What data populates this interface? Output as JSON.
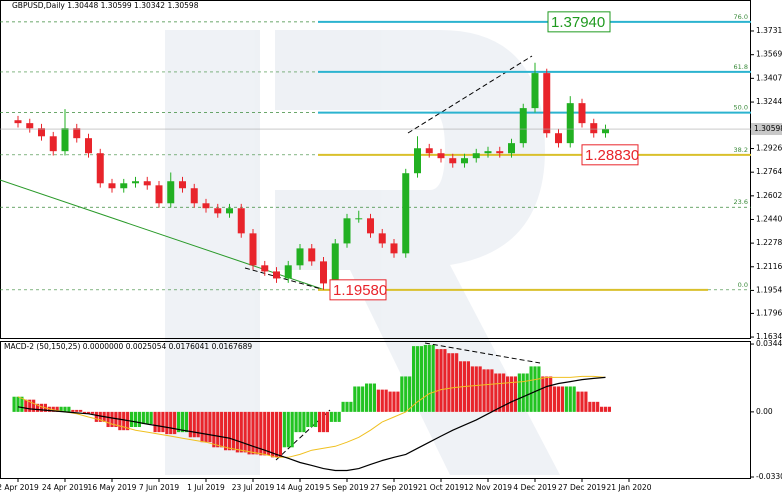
{
  "chart_data": [
    {
      "type": "candlestick",
      "title": "GBPUSD,Daily  1.30448 1.30599 1.30342 1.30598",
      "categories": [
        "2 Apr 2019",
        null,
        null,
        null,
        "24 Apr 2019",
        null,
        null,
        null,
        "16 May 2019",
        null,
        null,
        null,
        "7 Jun 2019",
        null,
        null,
        null,
        "1 Jul 2019",
        null,
        null,
        null,
        "23 Jul 2019",
        null,
        null,
        null,
        "14 Aug 2019",
        null,
        null,
        null,
        "5 Sep 2019",
        null,
        null,
        null,
        "27 Sep 2019",
        null,
        null,
        null,
        "21 Oct 2019",
        null,
        null,
        null,
        "12 Nov 2019",
        null,
        null,
        null,
        "4 Dec 2019",
        null,
        null,
        null,
        "27 Dec 2019",
        null,
        null,
        null,
        "21 Jan 2020"
      ],
      "open": [
        1.312,
        1.31,
        1.3065,
        1.301,
        1.2908,
        1.3065,
        1.2997,
        1.2894,
        1.2688,
        1.2654,
        1.2688,
        1.2702,
        1.2674,
        1.2551,
        1.2702,
        1.2654,
        1.2551,
        1.2517,
        1.2482,
        1.2517,
        1.2345,
        1.2126,
        1.2084,
        1.2036,
        1.2126,
        1.2242,
        1.2153,
        1.2002,
        1.2276,
        1.2448,
        1.2448,
        1.2345,
        1.2276,
        1.2208,
        1.2757,
        1.2928,
        1.2894,
        1.286,
        1.2825,
        1.286,
        1.2894,
        1.2908,
        1.2894,
        1.2963,
        1.3203,
        1.3443,
        1.3031,
        1.2963,
        1.3237,
        1.31,
        1.3031,
        null,
        null
      ],
      "high": [
        1.315,
        1.313,
        1.3095,
        1.304,
        1.3196,
        1.3095,
        1.3027,
        1.2924,
        1.2718,
        1.2718,
        1.2732,
        1.2732,
        1.2704,
        1.2762,
        1.2732,
        1.2684,
        1.2581,
        1.2547,
        1.2547,
        1.2547,
        1.2375,
        1.2156,
        1.2114,
        1.2156,
        1.2272,
        1.2272,
        1.2183,
        1.2306,
        1.2478,
        1.25,
        1.2478,
        1.2375,
        1.2306,
        1.2787,
        1.301,
        1.2958,
        1.2924,
        1.289,
        1.289,
        1.2924,
        1.2938,
        1.2938,
        1.2993,
        1.3233,
        1.3514,
        1.3473,
        1.3061,
        1.3285,
        1.3267,
        1.313,
        1.309,
        null,
        null
      ],
      "low": [
        1.307,
        1.3035,
        1.298,
        1.2878,
        1.2878,
        1.2967,
        1.2864,
        1.2658,
        1.2624,
        1.2624,
        1.2658,
        1.2644,
        1.2521,
        1.2521,
        1.2624,
        1.2521,
        1.2487,
        1.2452,
        1.2452,
        1.2315,
        1.2096,
        1.2054,
        1.2006,
        1.2006,
        1.2096,
        1.2123,
        1.1958,
        1.1972,
        1.2246,
        1.2418,
        1.2315,
        1.2246,
        1.2178,
        1.2178,
        1.2727,
        1.2864,
        1.283,
        1.2795,
        1.2795,
        1.283,
        1.2864,
        1.2864,
        1.2864,
        1.2933,
        1.3173,
        1.3001,
        1.2933,
        1.2933,
        1.307,
        1.3001,
        1.3001,
        null,
        null
      ],
      "close": [
        1.31,
        1.3065,
        1.301,
        1.2908,
        1.3065,
        1.2997,
        1.2894,
        1.2688,
        1.2654,
        1.2688,
        1.2702,
        1.2674,
        1.2551,
        1.2702,
        1.2654,
        1.2551,
        1.2517,
        1.2482,
        1.2517,
        1.2345,
        1.2126,
        1.2084,
        1.2036,
        1.2126,
        1.2242,
        1.2153,
        1.2002,
        1.2276,
        1.2448,
        1.2448,
        1.2345,
        1.2276,
        1.2208,
        1.2757,
        1.2928,
        1.2894,
        1.286,
        1.2825,
        1.286,
        1.2894,
        1.2908,
        1.2894,
        1.2963,
        1.3203,
        1.3443,
        1.3031,
        1.2963,
        1.3237,
        1.31,
        1.3031,
        1.306,
        null,
        null
      ],
      "up_color": "#22b022",
      "down_color": "#e8242b",
      "ylim": [
        1.1628,
        1.393
      ],
      "yticks": [
        1.37315,
        {
          "value": 1.3569,
          "label": "1.35690"
        },
        {
          "value": 1.3407,
          "label": "1.34070"
        },
        1.32445,
        {
          "value": 1.2926,
          "label": "1.29260"
        },
        {
          "value": 1.2764,
          "label": "1.27640"
        },
        {
          "value": 1.2602,
          "label": "1.26020"
        },
        {
          "value": 1.244,
          "label": "1.24400"
        },
        {
          "value": 1.2278,
          "label": "1.22780"
        },
        {
          "value": 1.2116,
          "label": "1.21160"
        },
        {
          "value": 1.1954,
          "label": "1.19540"
        },
        1.17965,
        1.16345
      ],
      "current_price": 1.30598,
      "fib_levels": [
        {
          "label": "76.0",
          "value": 1.3794,
          "color": "#2bb3cf"
        },
        {
          "label": "61.8",
          "value": 1.3451,
          "color": "#2bb3cf"
        },
        {
          "label": "50.0",
          "value": 1.3172,
          "color": "#2bb3cf"
        },
        {
          "label": "38.2",
          "value": 1.2883,
          "color": "#d9c02b"
        },
        {
          "label": "23.6",
          "value": 1.2524,
          "color": null
        },
        {
          "label": "0.0",
          "value": 1.1958,
          "color": "#d9c02b"
        }
      ],
      "price_labels": [
        {
          "label": "1.37940",
          "value": 1.3794,
          "color": "#1f9a1f"
        },
        {
          "label": "1.28830",
          "value": 1.2883,
          "color": "#e8242b"
        },
        {
          "label": "1.19580",
          "value": 1.1958,
          "color": "#e8242b"
        }
      ]
    },
    {
      "type": "macd",
      "title": "MACD-2 (50,150,25) 0.0000000 0.0025054 0.0176041 0.0167689",
      "histogram": [
        0.0077,
        0.0062,
        0.0041,
        0.0026,
        0.0026,
        0.001,
        -0.001,
        -0.0051,
        -0.0077,
        -0.0093,
        -0.0077,
        -0.0062,
        -0.0103,
        -0.0113,
        -0.0103,
        -0.0129,
        -0.0154,
        -0.018,
        -0.0195,
        -0.0206,
        -0.0216,
        -0.0221,
        -0.0231,
        -0.018,
        -0.0103,
        -0.0077,
        -0.0103,
        -0.0051,
        0.0051,
        0.0129,
        0.0144,
        0.0113,
        0.0103,
        0.018,
        0.0334,
        0.034,
        0.0319,
        0.0298,
        0.0257,
        0.0231,
        0.0216,
        0.0195,
        0.018,
        0.0195,
        0.0231,
        0.018,
        0.0129,
        0.0129,
        0.0103,
        0.0051,
        0.0026,
        null,
        null
      ],
      "up_color": "#22c322",
      "down_color": "#e8242b",
      "series": [
        {
          "color": "#f0c020",
          "values": [
            0.0077,
            0.0051,
            0.0026,
            0.001,
            0,
            -0.001,
            -0.0026,
            -0.0041,
            -0.0062,
            -0.0077,
            -0.0093,
            -0.0103,
            -0.0113,
            -0.0123,
            -0.0134,
            -0.0144,
            -0.0154,
            -0.017,
            -0.0185,
            -0.0195,
            -0.0206,
            -0.0216,
            -0.0231,
            -0.0231,
            -0.0216,
            -0.0195,
            -0.0185,
            -0.0175,
            -0.0154,
            -0.0129,
            -0.0093,
            -0.0051,
            -0.0026,
            0,
            0.0051,
            0.0093,
            0.0113,
            0.0123,
            0.0129,
            0.0134,
            0.0139,
            0.0144,
            0.0149,
            0.0154,
            0.0164,
            0.0175,
            0.0175,
            0.0175,
            0.018,
            0.018,
            0.0175,
            null,
            null
          ]
        },
        {
          "color": "#000000",
          "values": [
            0.0026,
            0.0015,
            0.001,
            0.0005,
            0,
            -0.0005,
            -0.001,
            -0.0021,
            -0.0031,
            -0.0041,
            -0.0051,
            -0.0062,
            -0.0072,
            -0.0082,
            -0.0093,
            -0.0103,
            -0.0113,
            -0.0123,
            -0.0134,
            -0.0154,
            -0.0175,
            -0.0195,
            -0.0216,
            -0.0236,
            -0.0257,
            -0.0272,
            -0.0288,
            -0.0298,
            -0.0298,
            -0.0288,
            -0.0267,
            -0.0247,
            -0.0231,
            -0.0216,
            -0.0185,
            -0.0154,
            -0.0123,
            -0.0093,
            -0.0067,
            -0.0041,
            -0.001,
            0.0021,
            0.0051,
            0.0077,
            0.0103,
            0.0129,
            0.0144,
            0.0154,
            0.0164,
            0.017,
            0.0175,
            null,
            null
          ]
        }
      ],
      "ylim": [
        -0.0336,
        0.0355
      ],
      "yticks": [
        0.034457,
        {
          "value": 0,
          "label": "0.00"
        },
        -0.033085
      ]
    }
  ]
}
